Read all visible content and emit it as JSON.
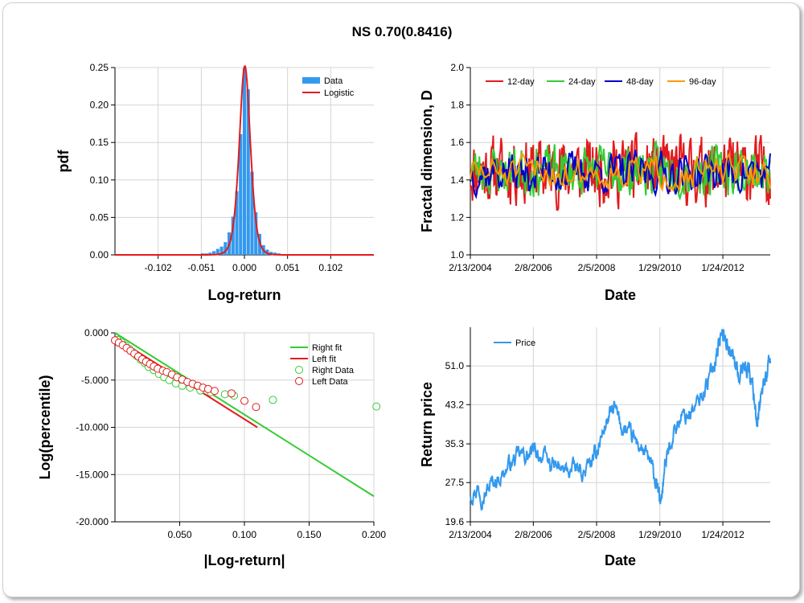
{
  "title": "NS 0.70(0.8416)",
  "colors": {
    "red": "#e31a1c",
    "green": "#33cc33",
    "blue": "#0000cc",
    "orange": "#ff9900",
    "bar": "#3399ee",
    "price": "#3399ee"
  },
  "chart_data": [
    {
      "type": "bar",
      "xlabel": "Log-return",
      "ylabel": "pdf",
      "xlim": [
        -0.153,
        0.153
      ],
      "ylim": [
        0,
        0.25
      ],
      "xticks": [
        -0.102,
        -0.051,
        0.0,
        0.051,
        0.102
      ],
      "xtick_labels": [
        "-0.102",
        "-0.051",
        "0.000",
        "0.051",
        "0.102"
      ],
      "yticks": [
        0,
        0.05,
        0.1,
        0.15,
        0.2,
        0.25
      ],
      "ytick_labels": [
        "0.00",
        "0.05",
        "0.10",
        "0.15",
        "0.20",
        "0.25"
      ],
      "legend": [
        "Data",
        "Logistic"
      ],
      "bin_width": 0.0045,
      "bins": [
        {
          "x": -0.0585,
          "y": 0.001
        },
        {
          "x": -0.054,
          "y": 0.001
        },
        {
          "x": -0.0495,
          "y": 0.002
        },
        {
          "x": -0.045,
          "y": 0.002
        },
        {
          "x": -0.0405,
          "y": 0.003
        },
        {
          "x": -0.036,
          "y": 0.005
        },
        {
          "x": -0.0315,
          "y": 0.008
        },
        {
          "x": -0.027,
          "y": 0.011
        },
        {
          "x": -0.0225,
          "y": 0.017
        },
        {
          "x": -0.018,
          "y": 0.03
        },
        {
          "x": -0.0135,
          "y": 0.051
        },
        {
          "x": -0.009,
          "y": 0.085
        },
        {
          "x": -0.0045,
          "y": 0.161
        },
        {
          "x": 0.0,
          "y": 0.249
        },
        {
          "x": 0.0045,
          "y": 0.221
        },
        {
          "x": 0.009,
          "y": 0.111
        },
        {
          "x": 0.0135,
          "y": 0.057
        },
        {
          "x": 0.018,
          "y": 0.028
        },
        {
          "x": 0.0225,
          "y": 0.013
        },
        {
          "x": 0.027,
          "y": 0.007
        },
        {
          "x": 0.0315,
          "y": 0.004
        },
        {
          "x": 0.036,
          "y": 0.003
        },
        {
          "x": 0.0405,
          "y": 0.002
        },
        {
          "x": 0.045,
          "y": 0.001
        },
        {
          "x": 0.0495,
          "y": 0.001
        }
      ],
      "logistic": {
        "mu": 0.0005,
        "scale": 0.00435
      }
    },
    {
      "type": "line",
      "xlabel": "Date",
      "ylabel": "Fractal dimension, D",
      "xlim": [
        2004.12,
        2013.55
      ],
      "ylim": [
        1.0,
        2.0
      ],
      "xticks": [
        2004.12,
        2006.1,
        2008.09,
        2010.08,
        2012.06
      ],
      "xtick_labels": [
        "2/13/2004",
        "2/8/2006",
        "2/5/2008",
        "1/29/2010",
        "1/24/2012"
      ],
      "yticks": [
        1.0,
        1.2,
        1.4,
        1.6,
        1.8,
        2.0
      ],
      "ytick_labels": [
        "1.0",
        "1.2",
        "1.4",
        "1.6",
        "1.8",
        "2.0"
      ],
      "series": [
        {
          "name": "12-day",
          "color": "#e31a1c",
          "mean": 1.45,
          "amp": 0.24,
          "seed": 11,
          "n": 420
        },
        {
          "name": "24-day",
          "color": "#33cc33",
          "mean": 1.45,
          "amp": 0.18,
          "seed": 23,
          "n": 300
        },
        {
          "name": "48-day",
          "color": "#0000cc",
          "mean": 1.44,
          "amp": 0.15,
          "seed": 37,
          "n": 210
        },
        {
          "name": "96-day",
          "color": "#ff9900",
          "mean": 1.44,
          "amp": 0.12,
          "seed": 51,
          "n": 140
        }
      ]
    },
    {
      "type": "scatter",
      "xlabel": "|Log-return|",
      "ylabel": "Log(percentile)",
      "xlim": [
        0,
        0.2
      ],
      "ylim": [
        -20,
        0
      ],
      "xticks": [
        0.05,
        0.1,
        0.15,
        0.2
      ],
      "xtick_labels": [
        "0.050",
        "0.100",
        "0.150",
        "0.200"
      ],
      "yticks": [
        0,
        -5,
        -10,
        -15,
        -20
      ],
      "ytick_labels": [
        "0.000",
        "-5.000",
        "-10.000",
        "-15.000",
        "-20.000"
      ],
      "legend": [
        "Right fit",
        "Left fit",
        "Right Data",
        "Left Data"
      ],
      "right_fit": {
        "x": [
          0.0,
          0.2
        ],
        "y": [
          0.0,
          -17.3
        ]
      },
      "left_fit": {
        "x": [
          0.0,
          0.11
        ],
        "y": [
          -0.5,
          -10.0
        ]
      },
      "right_data": [
        [
          0.002,
          -0.75
        ],
        [
          0.005,
          -1.0
        ],
        [
          0.008,
          -1.35
        ],
        [
          0.011,
          -1.7
        ],
        [
          0.014,
          -2.05
        ],
        [
          0.017,
          -2.45
        ],
        [
          0.02,
          -2.85
        ],
        [
          0.023,
          -3.2
        ],
        [
          0.026,
          -3.6
        ],
        [
          0.03,
          -3.95
        ],
        [
          0.034,
          -4.35
        ],
        [
          0.038,
          -4.7
        ],
        [
          0.042,
          -5.0
        ],
        [
          0.047,
          -5.35
        ],
        [
          0.052,
          -5.6
        ],
        [
          0.058,
          -5.8
        ],
        [
          0.066,
          -6.1
        ],
        [
          0.074,
          -6.3
        ],
        [
          0.085,
          -6.5
        ],
        [
          0.092,
          -6.65
        ],
        [
          0.122,
          -7.1
        ],
        [
          0.202,
          -7.8
        ]
      ],
      "left_data": [
        [
          0.0,
          -0.8
        ],
        [
          0.003,
          -1.05
        ],
        [
          0.006,
          -1.3
        ],
        [
          0.009,
          -1.6
        ],
        [
          0.012,
          -1.9
        ],
        [
          0.015,
          -2.2
        ],
        [
          0.018,
          -2.5
        ],
        [
          0.021,
          -2.8
        ],
        [
          0.024,
          -3.05
        ],
        [
          0.027,
          -3.3
        ],
        [
          0.03,
          -3.55
        ],
        [
          0.033,
          -3.8
        ],
        [
          0.037,
          -4.0
        ],
        [
          0.04,
          -4.15
        ],
        [
          0.044,
          -4.4
        ],
        [
          0.048,
          -4.7
        ],
        [
          0.052,
          -4.95
        ],
        [
          0.056,
          -5.2
        ],
        [
          0.06,
          -5.4
        ],
        [
          0.064,
          -5.6
        ],
        [
          0.068,
          -5.8
        ],
        [
          0.072,
          -5.95
        ],
        [
          0.077,
          -6.15
        ],
        [
          0.09,
          -6.4
        ],
        [
          0.1,
          -7.2
        ],
        [
          0.109,
          -7.85
        ]
      ]
    },
    {
      "type": "line",
      "xlabel": "Date",
      "ylabel": "Return price",
      "xlim": [
        2004.12,
        2013.55
      ],
      "ylim": [
        19.6,
        58.8
      ],
      "xticks": [
        2004.12,
        2006.1,
        2008.09,
        2010.08,
        2012.06
      ],
      "xtick_labels": [
        "2/13/2004",
        "2/8/2006",
        "2/5/2008",
        "1/29/2010",
        "1/24/2012"
      ],
      "yticks": [
        19.6,
        27.5,
        35.3,
        43.2,
        51.0
      ],
      "ytick_labels": [
        "19.6",
        "27.5",
        "35.3",
        "43.2",
        "51.0"
      ],
      "legend": [
        "Price"
      ],
      "series": [
        {
          "name": "Price",
          "color": "#3399ee",
          "anchors": [
            [
              2004.12,
              25.5
            ],
            [
              2004.35,
              26.5
            ],
            [
              2004.55,
              24.8
            ],
            [
              2004.8,
              27.5
            ],
            [
              2005.1,
              29.0
            ],
            [
              2005.4,
              31.5
            ],
            [
              2005.7,
              33.0
            ],
            [
              2005.95,
              32.8
            ],
            [
              2006.2,
              33.8
            ],
            [
              2006.5,
              32.0
            ],
            [
              2006.8,
              30.5
            ],
            [
              2007.1,
              29.8
            ],
            [
              2007.4,
              30.2
            ],
            [
              2007.7,
              29.5
            ],
            [
              2008.0,
              32.0
            ],
            [
              2008.2,
              36.0
            ],
            [
              2008.45,
              40.5
            ],
            [
              2008.65,
              42.5
            ],
            [
              2008.85,
              39.0
            ],
            [
              2009.05,
              37.5
            ],
            [
              2009.3,
              36.0
            ],
            [
              2009.55,
              34.0
            ],
            [
              2009.8,
              31.0
            ],
            [
              2010.0,
              26.0
            ],
            [
              2010.1,
              23.5
            ],
            [
              2010.25,
              31.0
            ],
            [
              2010.5,
              38.0
            ],
            [
              2010.75,
              40.5
            ],
            [
              2011.0,
              41.5
            ],
            [
              2011.25,
              43.0
            ],
            [
              2011.5,
              46.5
            ],
            [
              2011.75,
              50.5
            ],
            [
              2011.9,
              55.0
            ],
            [
              2012.05,
              57.5
            ],
            [
              2012.2,
              56.0
            ],
            [
              2012.4,
              52.5
            ],
            [
              2012.55,
              49.0
            ],
            [
              2012.75,
              51.5
            ],
            [
              2012.9,
              50.0
            ],
            [
              2013.05,
              45.0
            ],
            [
              2013.15,
              38.5
            ],
            [
              2013.25,
              44.0
            ],
            [
              2013.4,
              48.5
            ],
            [
              2013.55,
              51.5
            ]
          ]
        }
      ]
    }
  ]
}
